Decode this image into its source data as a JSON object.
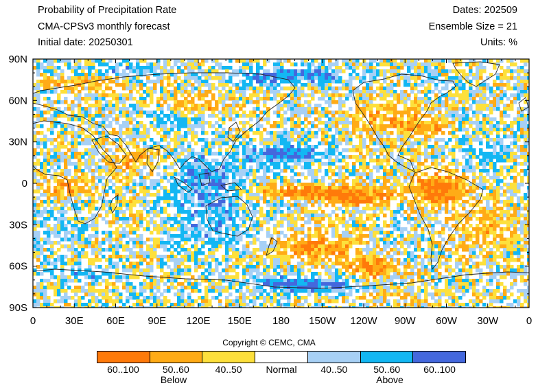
{
  "header": {
    "title": "Probability of Precipitation Rate",
    "model": "CMA-CPSv3 monthly forecast",
    "initial_date": "Initial date: 20250301",
    "dates": "Dates: 202509",
    "ensemble": "Ensemble Size = 21",
    "units": "Units: %"
  },
  "map": {
    "lat_labels": [
      "90N",
      "60N",
      "30N",
      "0",
      "30S",
      "60S",
      "90S"
    ],
    "lon_labels": [
      "0",
      "30E",
      "60E",
      "90E",
      "120E",
      "150E",
      "180",
      "150W",
      "120W",
      "90W",
      "60W",
      "30W",
      "0"
    ],
    "colors": {
      "below_60_100": "#ff7a0a",
      "below_50_60": "#ffab16",
      "below_40_50": "#fde03c",
      "normal": "#ffffff",
      "above_40_50": "#a7d0f5",
      "above_50_60": "#13b7f3",
      "above_60_100": "#4468dd",
      "coast": "#222222"
    }
  },
  "copyright": "Copyright © CEMC, CMA",
  "legend": {
    "items": [
      {
        "label": "60..100",
        "color": "#ff7a0a"
      },
      {
        "label": "50..60",
        "color": "#ffab16"
      },
      {
        "label": "40..50",
        "color": "#fde03c"
      },
      {
        "label": "Normal",
        "color": "#ffffff"
      },
      {
        "label": "40..50",
        "color": "#a7d0f5"
      },
      {
        "label": "50..60",
        "color": "#13b7f3"
      },
      {
        "label": "60..100",
        "color": "#4468dd"
      }
    ],
    "below": "Below",
    "above": "Above"
  }
}
